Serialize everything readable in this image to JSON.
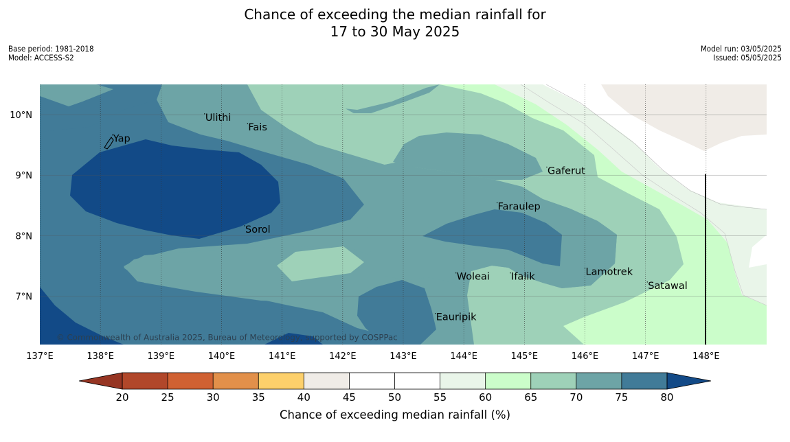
{
  "header": {
    "title_line1": "Chance of exceeding the median rainfall for",
    "title_line2": "17 to 30 May 2025",
    "base_period": "Base period: 1981-2018",
    "model": "Model: ACCESS-S2",
    "model_run": "Model run: 03/05/2025",
    "issued": "Issued: 05/05/2025"
  },
  "map": {
    "lon_range": [
      137,
      149
    ],
    "lat_range": [
      6.2,
      10.5
    ],
    "lon_ticks": [
      "137°E",
      "138°E",
      "139°E",
      "140°E",
      "141°E",
      "142°E",
      "143°E",
      "144°E",
      "145°E",
      "146°E",
      "147°E",
      "148°E"
    ],
    "lat_ticks": [
      "10°N",
      "9°N",
      "8°N",
      "7°N"
    ],
    "copyright": "© Commonwealth of Australia 2025, Bureau of Meteorology, supported by COSPPac",
    "places": [
      {
        "name": "Ulithi",
        "lon": 139.72,
        "lat": 9.9
      },
      {
        "name": "Fais",
        "lon": 140.43,
        "lat": 9.74
      },
      {
        "name": "Yap",
        "lon": 138.2,
        "lat": 9.55
      },
      {
        "name": "Gaferut",
        "lon": 145.37,
        "lat": 9.02
      },
      {
        "name": "Faraulep",
        "lon": 144.55,
        "lat": 8.43
      },
      {
        "name": "Sorol",
        "lon": 140.38,
        "lat": 8.05
      },
      {
        "name": "Lamotrek",
        "lon": 146.0,
        "lat": 7.35
      },
      {
        "name": "Woleai",
        "lon": 143.87,
        "lat": 7.27
      },
      {
        "name": "Ifalik",
        "lon": 144.77,
        "lat": 7.27
      },
      {
        "name": "Satawal",
        "lon": 147.03,
        "lat": 7.12
      },
      {
        "name": "Eauripik",
        "lon": 143.53,
        "lat": 6.6
      }
    ]
  },
  "colorbar": {
    "label": "Chance of exceeding median rainfall (%)",
    "ticks": [
      "20",
      "25",
      "30",
      "35",
      "40",
      "45",
      "50",
      "55",
      "60",
      "65",
      "70",
      "75",
      "80"
    ],
    "colors": [
      "#b1472a",
      "#d06132",
      "#e2904a",
      "#fdd06b",
      "#f0ece7",
      "#ffffff",
      "#ffffff",
      "#e9f5e9",
      "#cbfdca",
      "#9ed1b8",
      "#6da4a6",
      "#417b98"
    ],
    "under_color": "#963523",
    "over_color": "#134a87"
  },
  "legend_colors": {
    "c80": "#124a87",
    "c75": "#417b98",
    "c70": "#6da4a6",
    "c65": "#9ed1b8",
    "c60": "#cbfdca",
    "c55": "#e9f5e9",
    "c45": "#f0ece7"
  }
}
